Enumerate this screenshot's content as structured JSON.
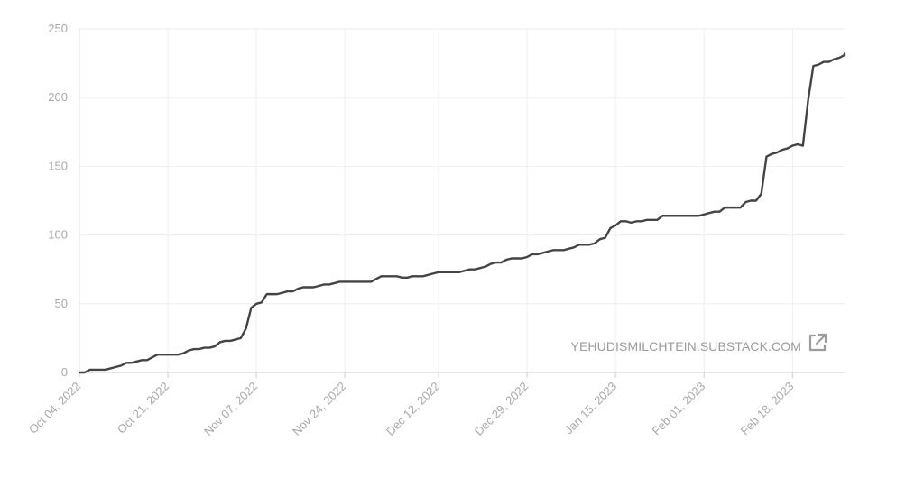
{
  "watermark": {
    "text": "YEHUDISMILCHTEIN.SUBSTACK.COM",
    "icon": "external-link-icon"
  },
  "chart_data": {
    "type": "line",
    "title": "",
    "xlabel": "",
    "ylabel": "",
    "ylim": [
      0,
      250
    ],
    "yticks": [
      0,
      50,
      100,
      150,
      200,
      250
    ],
    "grid": true,
    "line_color": "#444444",
    "xlim": [
      "2022-10-04",
      "2023-02-28"
    ],
    "xticks": [
      "Oct 04, 2022",
      "Oct 21, 2022",
      "Nov 07, 2022",
      "Nov 24, 2022",
      "Dec 12, 2022",
      "Dec 29, 2022",
      "Jan 15, 2023",
      "Feb 01, 2023",
      "Feb 18, 2023"
    ],
    "xtick_dates": [
      "2022-10-04",
      "2022-10-21",
      "2022-11-07",
      "2022-11-24",
      "2022-12-12",
      "2022-12-29",
      "2023-01-15",
      "2023-02-01",
      "2023-02-18"
    ],
    "series": [
      {
        "points": [
          [
            "2022-10-04",
            0
          ],
          [
            "2022-10-05",
            0
          ],
          [
            "2022-10-06",
            2
          ],
          [
            "2022-10-07",
            2
          ],
          [
            "2022-10-08",
            2
          ],
          [
            "2022-10-09",
            2
          ],
          [
            "2022-10-11",
            4
          ],
          [
            "2022-10-12",
            5
          ],
          [
            "2022-10-13",
            7
          ],
          [
            "2022-10-14",
            7
          ],
          [
            "2022-10-15",
            8
          ],
          [
            "2022-10-16",
            9
          ],
          [
            "2022-10-17",
            9
          ],
          [
            "2022-10-18",
            11
          ],
          [
            "2022-10-19",
            13
          ],
          [
            "2022-10-20",
            13
          ],
          [
            "2022-10-22",
            13
          ],
          [
            "2022-10-23",
            13
          ],
          [
            "2022-10-24",
            14
          ],
          [
            "2022-10-25",
            16
          ],
          [
            "2022-10-26",
            17
          ],
          [
            "2022-10-27",
            17
          ],
          [
            "2022-10-28",
            18
          ],
          [
            "2022-10-29",
            18
          ],
          [
            "2022-10-30",
            19
          ],
          [
            "2022-10-31",
            22
          ],
          [
            "2022-11-01",
            23
          ],
          [
            "2022-11-02",
            23
          ],
          [
            "2022-11-03",
            24
          ],
          [
            "2022-11-04",
            25
          ],
          [
            "2022-11-05",
            32
          ],
          [
            "2022-11-06",
            47
          ],
          [
            "2022-11-07",
            50
          ],
          [
            "2022-11-08",
            51
          ],
          [
            "2022-11-09",
            57
          ],
          [
            "2022-11-10",
            57
          ],
          [
            "2022-11-11",
            57
          ],
          [
            "2022-11-12",
            58
          ],
          [
            "2022-11-13",
            59
          ],
          [
            "2022-11-14",
            59
          ],
          [
            "2022-11-15",
            61
          ],
          [
            "2022-11-16",
            62
          ],
          [
            "2022-11-17",
            62
          ],
          [
            "2022-11-18",
            62
          ],
          [
            "2022-11-19",
            63
          ],
          [
            "2022-11-20",
            64
          ],
          [
            "2022-11-21",
            64
          ],
          [
            "2022-11-22",
            65
          ],
          [
            "2022-11-23",
            66
          ],
          [
            "2022-11-25",
            66
          ],
          [
            "2022-11-27",
            66
          ],
          [
            "2022-11-29",
            66
          ],
          [
            "2022-11-30",
            68
          ],
          [
            "2022-12-01",
            70
          ],
          [
            "2022-12-03",
            70
          ],
          [
            "2022-12-04",
            70
          ],
          [
            "2022-12-05",
            69
          ],
          [
            "2022-12-06",
            69
          ],
          [
            "2022-12-07",
            70
          ],
          [
            "2022-12-09",
            70
          ],
          [
            "2022-12-11",
            72
          ],
          [
            "2022-12-12",
            73
          ],
          [
            "2022-12-14",
            73
          ],
          [
            "2022-12-16",
            73
          ],
          [
            "2022-12-17",
            74
          ],
          [
            "2022-12-18",
            75
          ],
          [
            "2022-12-19",
            75
          ],
          [
            "2022-12-20",
            76
          ],
          [
            "2022-12-21",
            77
          ],
          [
            "2022-12-22",
            79
          ],
          [
            "2022-12-23",
            80
          ],
          [
            "2022-12-24",
            80
          ],
          [
            "2022-12-25",
            82
          ],
          [
            "2022-12-26",
            83
          ],
          [
            "2022-12-27",
            83
          ],
          [
            "2022-12-28",
            83
          ],
          [
            "2022-12-29",
            84
          ],
          [
            "2022-12-30",
            86
          ],
          [
            "2022-12-31",
            86
          ],
          [
            "2023-01-01",
            87
          ],
          [
            "2023-01-02",
            88
          ],
          [
            "2023-01-03",
            89
          ],
          [
            "2023-01-05",
            89
          ],
          [
            "2023-01-06",
            90
          ],
          [
            "2023-01-07",
            91
          ],
          [
            "2023-01-08",
            93
          ],
          [
            "2023-01-10",
            93
          ],
          [
            "2023-01-11",
            94
          ],
          [
            "2023-01-12",
            97
          ],
          [
            "2023-01-13",
            98
          ],
          [
            "2023-01-14",
            105
          ],
          [
            "2023-01-15",
            107
          ],
          [
            "2023-01-16",
            110
          ],
          [
            "2023-01-17",
            110
          ],
          [
            "2023-01-18",
            109
          ],
          [
            "2023-01-19",
            110
          ],
          [
            "2023-01-20",
            110
          ],
          [
            "2023-01-21",
            111
          ],
          [
            "2023-01-22",
            111
          ],
          [
            "2023-01-23",
            111
          ],
          [
            "2023-01-24",
            114
          ],
          [
            "2023-01-26",
            114
          ],
          [
            "2023-01-28",
            114
          ],
          [
            "2023-01-30",
            114
          ],
          [
            "2023-01-31",
            114
          ],
          [
            "2023-02-01",
            115
          ],
          [
            "2023-02-02",
            116
          ],
          [
            "2023-02-03",
            117
          ],
          [
            "2023-02-04",
            117
          ],
          [
            "2023-02-05",
            120
          ],
          [
            "2023-02-07",
            120
          ],
          [
            "2023-02-08",
            120
          ],
          [
            "2023-02-09",
            124
          ],
          [
            "2023-02-10",
            125
          ],
          [
            "2023-02-11",
            125
          ],
          [
            "2023-02-12",
            130
          ],
          [
            "2023-02-13",
            157
          ],
          [
            "2023-02-14",
            159
          ],
          [
            "2023-02-15",
            160
          ],
          [
            "2023-02-16",
            162
          ],
          [
            "2023-02-17",
            163
          ],
          [
            "2023-02-18",
            165
          ],
          [
            "2023-02-19",
            166
          ],
          [
            "2023-02-20",
            165
          ],
          [
            "2023-02-21",
            198
          ],
          [
            "2023-02-22",
            223
          ],
          [
            "2023-02-23",
            224
          ],
          [
            "2023-02-24",
            226
          ],
          [
            "2023-02-25",
            226
          ],
          [
            "2023-02-26",
            228
          ],
          [
            "2023-02-27",
            229
          ],
          [
            "2023-02-28",
            231
          ],
          [
            "2023-03-01",
            232
          ]
        ]
      }
    ]
  }
}
